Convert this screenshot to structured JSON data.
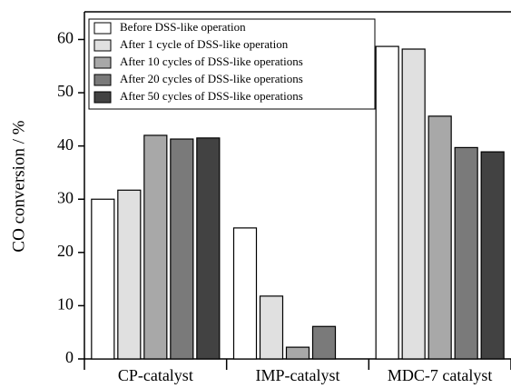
{
  "chart_data": {
    "type": "bar",
    "ylabel": "CO conversion / %",
    "categories": [
      "CP-catalyst",
      "IMP-catalyst",
      "MDC-7 catalyst"
    ],
    "series": [
      {
        "name": "Before DSS-like operation",
        "color": "#ffffff",
        "values": [
          30,
          24.6,
          58.7
        ]
      },
      {
        "name": "After 1 cycle of DSS-like operation",
        "color": "#e0e0e0",
        "values": [
          31.7,
          11.8,
          58.2
        ]
      },
      {
        "name": "After 10 cycles of DSS-like operations",
        "color": "#a8a8a8",
        "values": [
          42,
          2.2,
          45.6
        ]
      },
      {
        "name": "After 20 cycles of DSS-like operations",
        "color": "#7a7a7a",
        "values": [
          41.3,
          6.1,
          39.7
        ]
      },
      {
        "name": "After 50 cycles of DSS-like operations",
        "color": "#424242",
        "values": [
          41.5,
          null,
          38.9
        ]
      }
    ],
    "ylim": [
      0,
      65.2
    ],
    "yticks": [
      0,
      10,
      20,
      30,
      40,
      50,
      60
    ],
    "legend": "upper left"
  }
}
